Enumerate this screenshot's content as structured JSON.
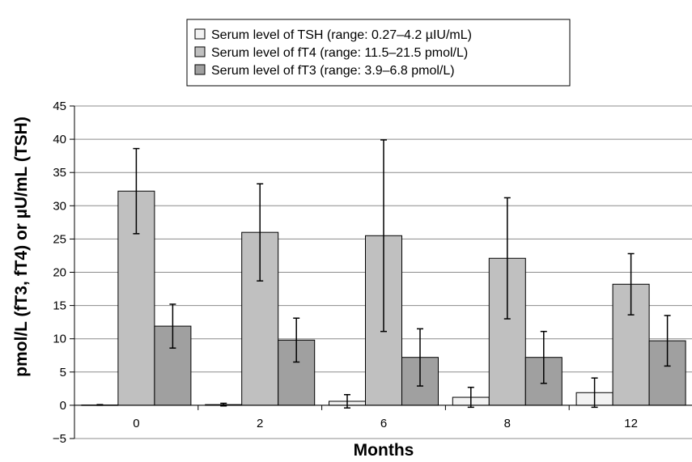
{
  "chart_data": {
    "type": "bar",
    "title": "",
    "xlabel": "Months",
    "ylabel": "pmol/L (fT3, fT4) or µU/mL (TSH)",
    "categories": [
      "0",
      "2",
      "6",
      "8",
      "12"
    ],
    "ylim": [
      -5,
      45
    ],
    "yticks": [
      -5,
      0,
      5,
      10,
      15,
      20,
      25,
      30,
      35,
      40,
      45
    ],
    "ytick_labels": [
      "−5",
      "0",
      "5",
      "10",
      "15",
      "20",
      "25",
      "30",
      "35",
      "40",
      "45"
    ],
    "grid": true,
    "legend_position": "top-center",
    "series": [
      {
        "name": "Serum level of TSH (range: 0.27–4.2 µIU/mL)",
        "color": "#f2f2f2",
        "values": [
          0.05,
          0.1,
          0.6,
          1.2,
          1.9
        ],
        "error": [
          0.05,
          0.2,
          1.0,
          1.5,
          2.2
        ]
      },
      {
        "name": "Serum level of fT4 (range: 11.5–21.5 pmol/L)",
        "color": "#c0c0c0",
        "values": [
          32.2,
          26.0,
          25.5,
          22.1,
          18.2
        ],
        "error": [
          6.4,
          7.3,
          14.4,
          9.1,
          4.6
        ]
      },
      {
        "name": "Serum level of fT3 (range: 3.9–6.8 pmol/L)",
        "color": "#a0a0a0",
        "values": [
          11.9,
          9.8,
          7.2,
          7.2,
          9.7
        ],
        "error": [
          3.3,
          3.3,
          4.3,
          3.9,
          3.8
        ]
      }
    ]
  }
}
